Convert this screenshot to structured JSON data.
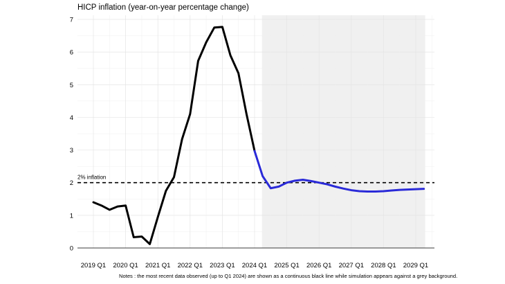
{
  "chart_data": {
    "type": "line",
    "title": "HICP inflation (year-on-year percentage change)",
    "note": "Notes : the most recent data observed (up to Q1 2024) are shown as a continuous black line while simulation appears against a grey background.",
    "ylim": [
      0,
      7
    ],
    "y_ticks": [
      "0",
      "1",
      "2",
      "3",
      "4",
      "5",
      "6",
      "7"
    ],
    "x_tick_labels": [
      "2019 Q1",
      "2020 Q1",
      "2021 Q1",
      "2022 Q1",
      "2023 Q1",
      "2024 Q1",
      "2025 Q1",
      "2026 Q1",
      "2027 Q1",
      "2028 Q1",
      "2029 Q1"
    ],
    "grid": true,
    "shaded_region": {
      "from": "2024 Q2",
      "to": "2029 Q2",
      "color": "#f0f0f0"
    },
    "reference_line": {
      "value": 2,
      "label": "2% inflation",
      "style": "dashed",
      "color": "#000000"
    },
    "series": [
      {
        "color": "#000000",
        "x": [
          "2019 Q1",
          "2019 Q2",
          "2019 Q3",
          "2019 Q4",
          "2020 Q1",
          "2020 Q2",
          "2020 Q3",
          "2020 Q4",
          "2021 Q1",
          "2021 Q2",
          "2021 Q3",
          "2021 Q4",
          "2022 Q1",
          "2022 Q2",
          "2022 Q3",
          "2022 Q4",
          "2023 Q1",
          "2023 Q2",
          "2023 Q3",
          "2023 Q4",
          "2024 Q1"
        ],
        "values": [
          1.4,
          1.3,
          1.17,
          1.27,
          1.3,
          0.33,
          0.35,
          0.12,
          0.95,
          1.75,
          2.17,
          3.33,
          4.1,
          5.73,
          6.3,
          6.75,
          6.77,
          5.9,
          5.35,
          4.1,
          2.97
        ]
      },
      {
        "color": "#2a2ad8",
        "x": [
          "2024 Q1",
          "2024 Q2",
          "2024 Q3",
          "2024 Q4",
          "2025 Q1",
          "2025 Q2",
          "2025 Q3",
          "2025 Q4",
          "2026 Q1",
          "2026 Q2",
          "2026 Q3",
          "2026 Q4",
          "2027 Q1",
          "2027 Q2",
          "2027 Q3",
          "2027 Q4",
          "2028 Q1",
          "2028 Q2",
          "2028 Q3",
          "2028 Q4",
          "2029 Q1",
          "2029 Q2"
        ],
        "values": [
          2.97,
          2.2,
          1.83,
          1.88,
          2.0,
          2.06,
          2.09,
          2.05,
          2.0,
          1.95,
          1.88,
          1.82,
          1.77,
          1.74,
          1.73,
          1.73,
          1.74,
          1.76,
          1.78,
          1.79,
          1.8,
          1.81
        ]
      }
    ]
  }
}
